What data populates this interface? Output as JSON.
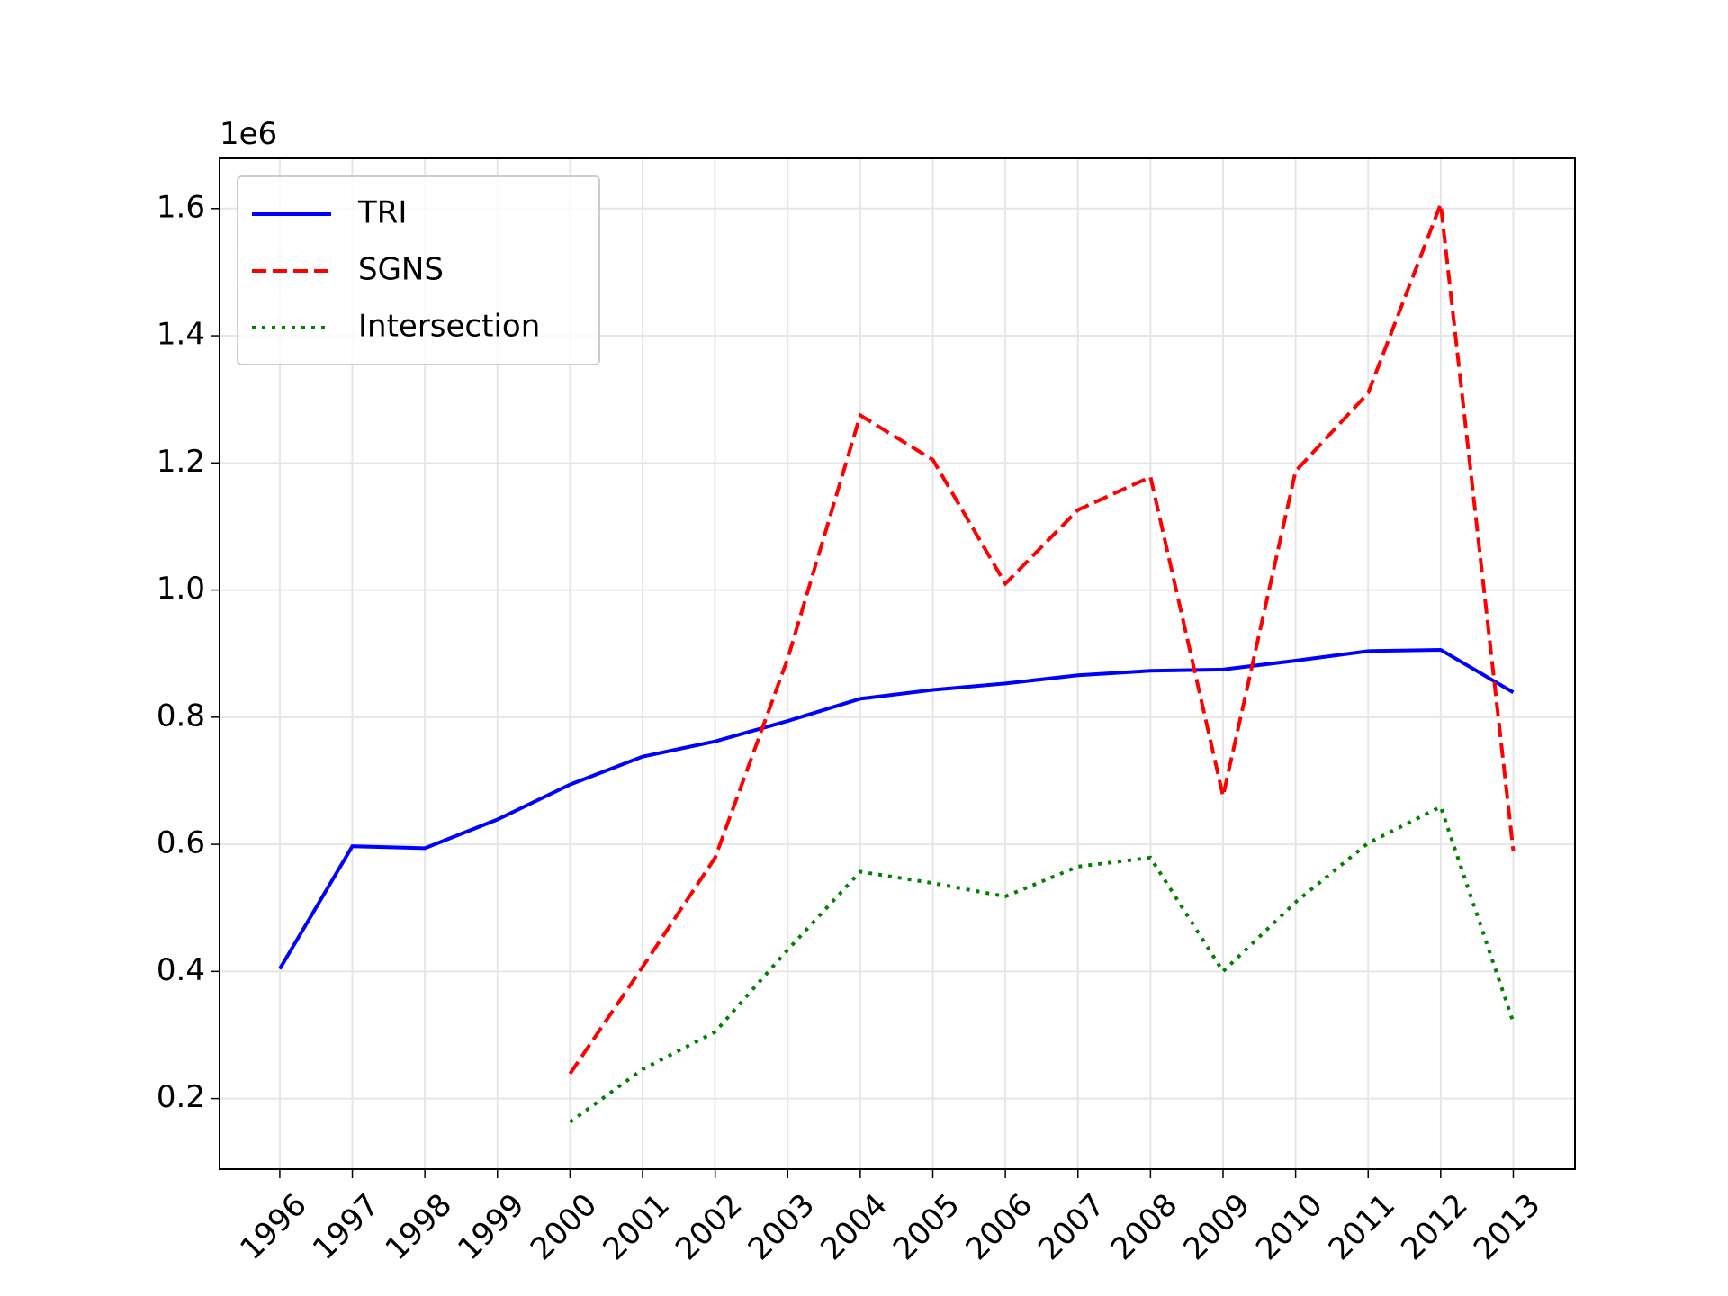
{
  "chart_data": {
    "type": "line",
    "offset_label": "1e6",
    "x": [
      1996,
      1997,
      1998,
      1999,
      2000,
      2001,
      2002,
      2003,
      2004,
      2005,
      2006,
      2007,
      2008,
      2009,
      2010,
      2011,
      2012,
      2013
    ],
    "xlim": [
      1995.17,
      2013.85
    ],
    "xticks": [
      1996,
      1997,
      1998,
      1999,
      2000,
      2001,
      2002,
      2003,
      2004,
      2005,
      2006,
      2007,
      2008,
      2009,
      2010,
      2011,
      2012,
      2013
    ],
    "ylim": [
      89000,
      1679000
    ],
    "yticks": [
      {
        "value": 200000,
        "label": "0.2"
      },
      {
        "value": 400000,
        "label": "0.4"
      },
      {
        "value": 600000,
        "label": "0.6"
      },
      {
        "value": 800000,
        "label": "0.8"
      },
      {
        "value": 1000000,
        "label": "1.0"
      },
      {
        "value": 1200000,
        "label": "1.2"
      },
      {
        "value": 1400000,
        "label": "1.4"
      },
      {
        "value": 1600000,
        "label": "1.6"
      }
    ],
    "grid": true,
    "legend": "upper left",
    "series": [
      {
        "name": "TRI",
        "color": "#0000ff",
        "linestyle": "solid",
        "values": [
          404000,
          597000,
          594000,
          639000,
          694000,
          738000,
          762000,
          794000,
          829000,
          843000,
          853000,
          866000,
          873000,
          875000,
          889000,
          904000,
          906000,
          839000
        ]
      },
      {
        "name": "SGNS",
        "color": "#ff0000",
        "linestyle": "dashed",
        "values": [
          null,
          null,
          null,
          null,
          239000,
          407000,
          579000,
          892000,
          1275000,
          1205000,
          1010000,
          1126000,
          1178000,
          676000,
          1187000,
          1310000,
          1607000,
          590000
        ]
      },
      {
        "name": "Intersection",
        "color": "#008000",
        "linestyle": "dotted",
        "values": [
          null,
          null,
          null,
          null,
          163000,
          246000,
          305000,
          434000,
          557000,
          539000,
          518000,
          565000,
          579000,
          400000,
          509000,
          602000,
          659000,
          320000
        ]
      }
    ]
  }
}
